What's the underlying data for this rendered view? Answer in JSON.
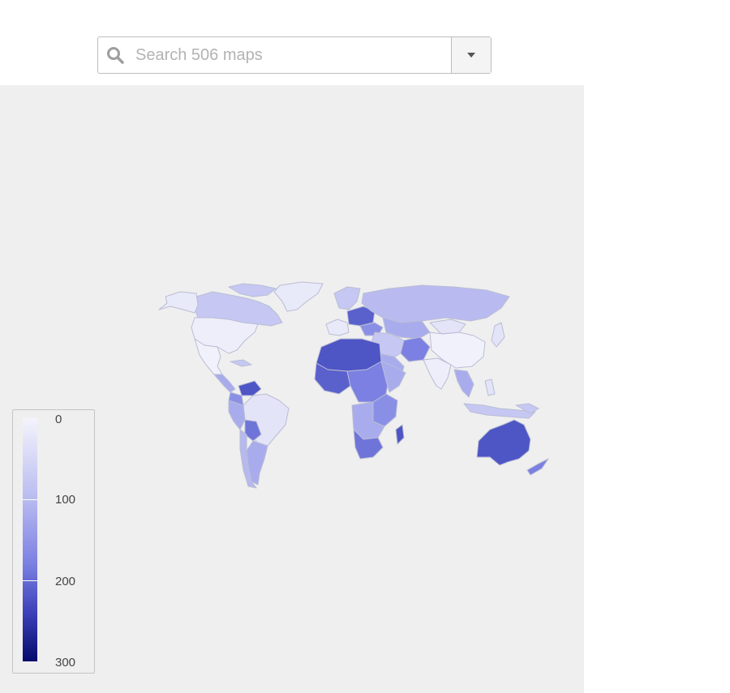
{
  "search": {
    "placeholder": "Search 506 maps",
    "icon": "search-icon",
    "dropdown_icon": "caret-down-icon"
  },
  "map": {
    "background": "#efefef",
    "border_color": "#b9bdd4",
    "fill_light": "#e9eaf9",
    "fill_mid": "#a9acec",
    "fill_dark": "#4e55c4"
  },
  "legend": {
    "labels": [
      "0",
      "100",
      "200",
      "300"
    ],
    "min": 0,
    "max": 300,
    "color_low": "#f4f4fc",
    "color_high": "#050a6b"
  }
}
